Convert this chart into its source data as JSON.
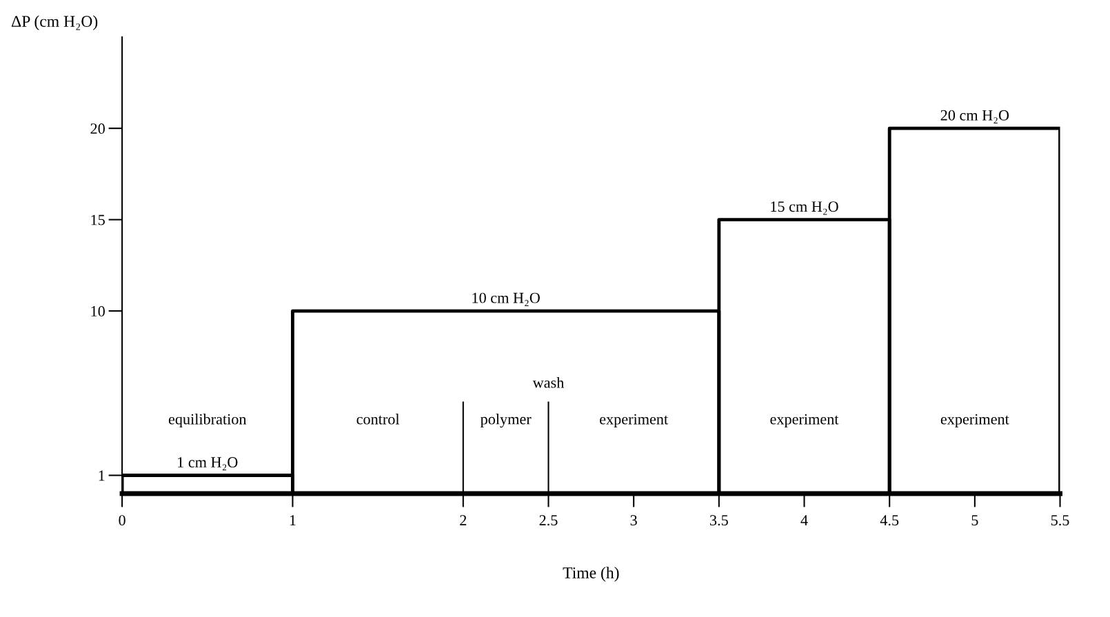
{
  "chart_data": {
    "type": "histogram",
    "xlabel": "Time (h)",
    "ylabel": "ΔP (cm H₂O)",
    "bins": [
      0,
      1,
      3.5,
      4.5,
      5.5
    ],
    "values": [
      1,
      10,
      15,
      20
    ],
    "value_labels": [
      "1 cm H₂O",
      "10 cm H₂O",
      "15 cm H₂O",
      "20 cm H₂O"
    ],
    "color": "#000000",
    "xlim": [
      0,
      5.5
    ],
    "xticks": [
      0,
      1,
      2,
      2.5,
      3,
      3.5,
      4,
      4.5,
      5,
      5.5
    ],
    "ylim": [
      0,
      25
    ],
    "yticks": [
      1,
      10,
      15,
      20
    ],
    "grid": false,
    "ref_lines": [
      {
        "axis": "x",
        "value": 2,
        "label": null
      },
      {
        "axis": "x",
        "value": 2.5,
        "label": null
      }
    ],
    "annotations": [
      "equilibration",
      "control",
      "polymer",
      "wash",
      "experiment",
      "experiment",
      "experiment"
    ]
  }
}
